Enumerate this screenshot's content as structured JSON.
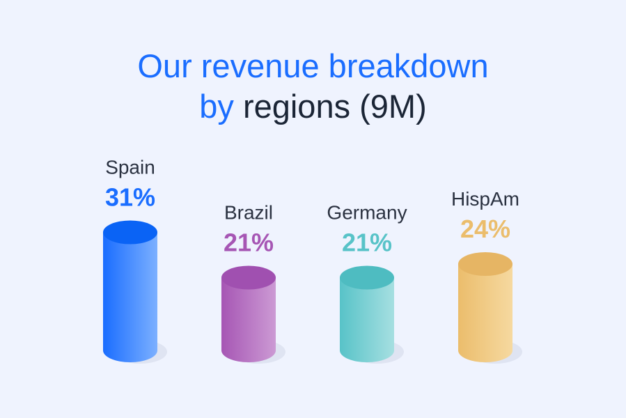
{
  "chart_data": {
    "type": "bar",
    "title_line1": "Our revenue breakdown",
    "title_by": "by",
    "title_line2_rest": "regions (9M)",
    "categories": [
      "Spain",
      "Brazil",
      "Germany",
      "HispAm"
    ],
    "values": [
      31,
      21,
      21,
      24
    ],
    "labels": [
      "31%",
      "21%",
      "21%",
      "24%"
    ],
    "colors": [
      "#1a6dff",
      "#a656b4",
      "#58c3c8",
      "#ebbd6c"
    ],
    "light_colors": [
      "#7cb0ff",
      "#cc9ad4",
      "#a6dfe1",
      "#f6d9a0"
    ],
    "top_colors": [
      "#0a63f5",
      "#a050b0",
      "#4ebcc1",
      "#e6b564"
    ],
    "xlabel": "",
    "ylabel": ""
  }
}
